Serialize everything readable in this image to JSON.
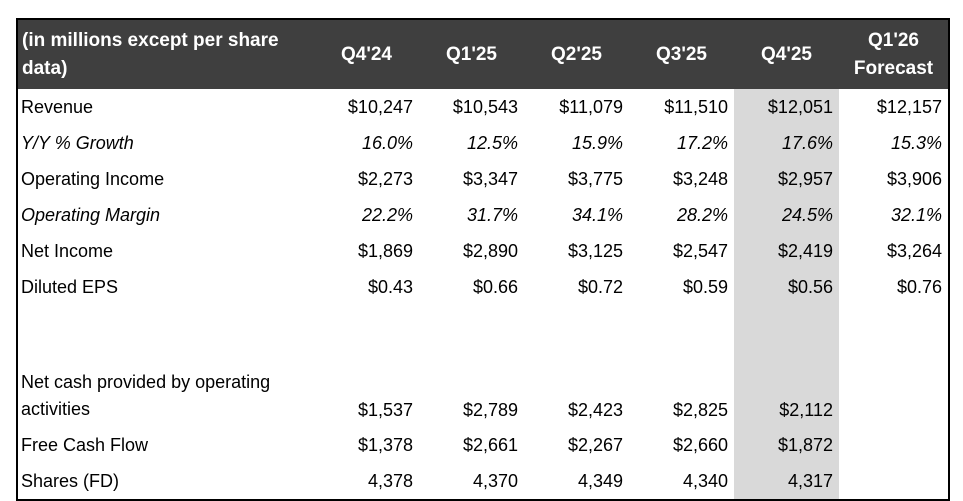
{
  "table": {
    "header_label": "(in millions except per share data)",
    "periods": [
      "Q4'24",
      "Q1'25",
      "Q2'25",
      "Q3'25",
      "Q4'25",
      "Q1'26 Forecast"
    ],
    "highlighted_period": "Q4'25",
    "highlight_color": "#d9d9d9",
    "header_bg": "#3f3f3f",
    "rows": [
      {
        "label": "Revenue",
        "values": [
          "$10,247",
          "$10,543",
          "$11,079",
          "$11,510",
          "$12,051",
          "$12,157"
        ]
      },
      {
        "label": "Y/Y % Growth",
        "italic": true,
        "values": [
          "16.0%",
          "12.5%",
          "15.9%",
          "17.2%",
          "17.6%",
          "15.3%"
        ]
      },
      {
        "label": "Operating Income",
        "values": [
          "$2,273",
          "$3,347",
          "$3,775",
          "$3,248",
          "$2,957",
          "$3,906"
        ]
      },
      {
        "label": "Operating Margin",
        "italic": true,
        "values": [
          "22.2%",
          "31.7%",
          "34.1%",
          "28.2%",
          "24.5%",
          "32.1%"
        ]
      },
      {
        "label": "Net Income",
        "values": [
          "$1,869",
          "$2,890",
          "$3,125",
          "$2,547",
          "$2,419",
          "$3,264"
        ]
      },
      {
        "label": "Diluted EPS",
        "values": [
          "$0.43",
          "$0.66",
          "$0.72",
          "$0.59",
          "$0.56",
          "$0.76"
        ]
      },
      {
        "spacer": true
      },
      {
        "label": "Net cash provided by operating activities",
        "tall": true,
        "values": [
          "$1,537",
          "$2,789",
          "$2,423",
          "$2,825",
          "$2,112",
          ""
        ]
      },
      {
        "label": "Free Cash Flow",
        "values": [
          "$1,378",
          "$2,661",
          "$2,267",
          "$2,660",
          "$1,872",
          ""
        ]
      },
      {
        "label": "Shares (FD)",
        "values": [
          "4,378",
          "4,370",
          "4,349",
          "4,340",
          "4,317",
          ""
        ]
      }
    ]
  }
}
